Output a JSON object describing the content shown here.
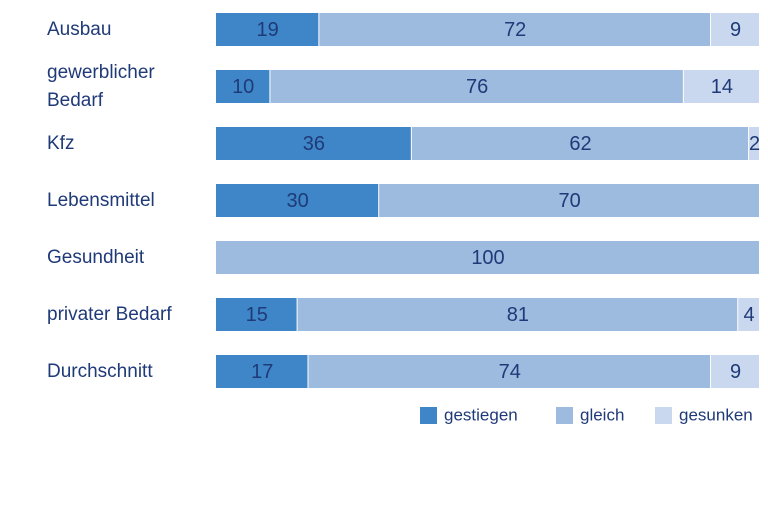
{
  "chart_data": {
    "type": "stacked-bar-horizontal",
    "categories": [
      "Ausbau",
      "gewerblicher Bedarf",
      "Kfz",
      "Lebensmittel",
      "Gesundheit",
      "privater Bedarf",
      "Durchschnitt"
    ],
    "series": [
      {
        "name": "gestiegen",
        "color": "#3f86c8",
        "values": [
          19,
          10,
          36,
          30,
          null,
          15,
          17
        ]
      },
      {
        "name": "gleich",
        "color": "#9dbadf",
        "values": [
          72,
          76,
          62,
          70,
          100,
          81,
          74
        ]
      },
      {
        "name": "gesunken",
        "color": "#c9d8ee",
        "values": [
          9,
          14,
          2,
          null,
          null,
          4,
          9
        ]
      }
    ],
    "xlim": [
      0,
      100
    ],
    "legend": "bottom-right"
  }
}
